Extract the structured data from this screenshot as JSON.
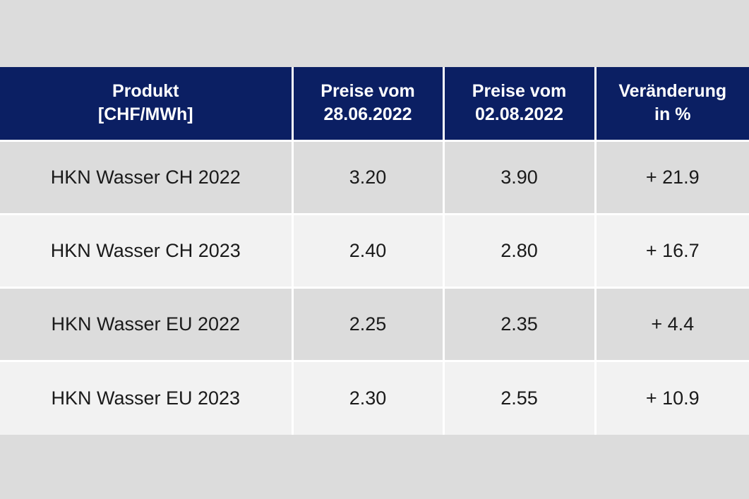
{
  "table": {
    "headers": [
      {
        "line1": "Produkt",
        "line2": "[CHF/MWh]"
      },
      {
        "line1": "Preise vom",
        "line2": "28.06.2022"
      },
      {
        "line1": "Preise vom",
        "line2": "02.08.2022"
      },
      {
        "line1": "Veränderung",
        "line2": "in %"
      }
    ],
    "rows": [
      {
        "product": "HKN Wasser CH 2022",
        "price_2806": "3.20",
        "price_0208": "3.90",
        "change": "+ 21.9"
      },
      {
        "product": "HKN Wasser CH 2023",
        "price_2806": "2.40",
        "price_0208": "2.80",
        "change": "+ 16.7"
      },
      {
        "product": "HKN Wasser EU 2022",
        "price_2806": "2.25",
        "price_0208": "2.35",
        "change": "+ 4.4"
      },
      {
        "product": "HKN Wasser EU 2023",
        "price_2806": "2.30",
        "price_0208": "2.55",
        "change": "+ 10.9"
      }
    ]
  },
  "colors": {
    "header_bg": "#0b1f63",
    "header_text": "#ffffff",
    "row_dark": "#dcdcdc",
    "row_light": "#f2f2f2",
    "page_bg": "#dcdcdc"
  }
}
